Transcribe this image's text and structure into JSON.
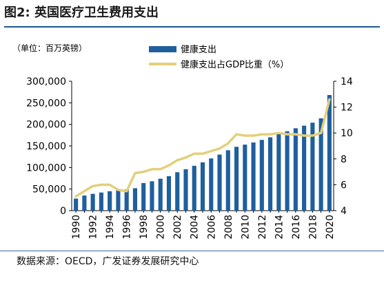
{
  "figure": {
    "title": "图2:  英国医疗卫生费用支出",
    "source": "数据来源：OECD，广发证券发展研究中心"
  },
  "chart_data": {
    "type": "bar+line",
    "unit_label": "（单位：百万英镑）",
    "x": [
      "1990",
      "1991",
      "1992",
      "1993",
      "1994",
      "1995",
      "1996",
      "1997",
      "1998",
      "1999",
      "2000",
      "2001",
      "2002",
      "2003",
      "2004",
      "2005",
      "2006",
      "2007",
      "2008",
      "2009",
      "2010",
      "2011",
      "2012",
      "2013",
      "2014",
      "2015",
      "2016",
      "2017",
      "2018",
      "2019",
      "2020"
    ],
    "x_tick_labels": [
      "1990",
      "1992",
      "1994",
      "1996",
      "1998",
      "2000",
      "2002",
      "2004",
      "2006",
      "2008",
      "2010",
      "2012",
      "2014",
      "2016",
      "2018",
      "2020"
    ],
    "series": [
      {
        "name": "健康支出",
        "type": "bar",
        "axis": "left",
        "color": "#1f5f9e",
        "values": [
          28000,
          35000,
          39000,
          42000,
          45000,
          47000,
          49000,
          52000,
          64000,
          68000,
          74000,
          80000,
          89000,
          96000,
          104000,
          112000,
          121000,
          130000,
          140000,
          148000,
          153000,
          158000,
          164000,
          170000,
          178000,
          184000,
          191000,
          197000,
          204000,
          214000,
          268000
        ]
      },
      {
        "name": "健康支出占GDP比重（%）",
        "type": "line",
        "axis": "right",
        "color": "#e3cf7a",
        "values": [
          5.1,
          5.5,
          5.9,
          6.0,
          6.0,
          5.6,
          5.5,
          6.9,
          7.0,
          7.2,
          7.2,
          7.5,
          7.9,
          8.1,
          8.4,
          8.4,
          8.6,
          8.8,
          9.2,
          9.9,
          9.8,
          9.8,
          9.9,
          9.9,
          10.0,
          9.9,
          9.9,
          9.8,
          9.8,
          10.0,
          12.6
        ]
      }
    ],
    "y_left": {
      "min": 0,
      "max": 300000,
      "ticks": [
        "0",
        "50,000",
        "100,000",
        "150,000",
        "200,000",
        "250,000",
        "300,000"
      ]
    },
    "y_right": {
      "min": 4,
      "max": 14,
      "ticks": [
        "4",
        "6",
        "8",
        "10",
        "12",
        "14"
      ]
    },
    "legend_position": "top",
    "grid": false
  }
}
